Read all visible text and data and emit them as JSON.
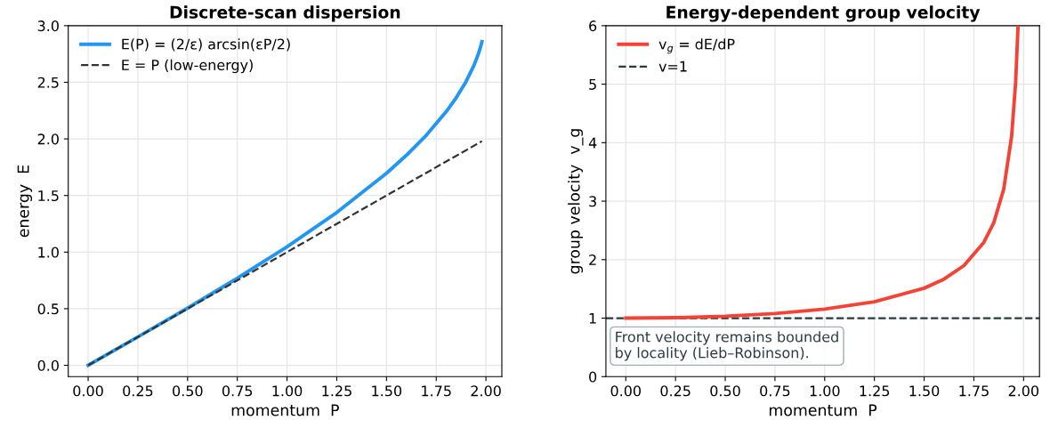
{
  "chart_data": [
    {
      "type": "line",
      "title": "Discrete-scan dispersion",
      "xlabel": "momentum  P",
      "ylabel": "energy  E",
      "xlim": [
        -0.1,
        2.08
      ],
      "ylim": [
        -0.1,
        3.0
      ],
      "xticks": [
        {
          "value": 0,
          "label": "0.00"
        },
        {
          "value": 0.25,
          "label": "0.25"
        },
        {
          "value": 0.5,
          "label": "0.50"
        },
        {
          "value": 0.75,
          "label": "0.75"
        },
        {
          "value": 1,
          "label": "1.00"
        },
        {
          "value": 1.25,
          "label": "1.25"
        },
        {
          "value": 1.5,
          "label": "1.50"
        },
        {
          "value": 1.75,
          "label": "1.75"
        },
        {
          "value": 2,
          "label": "2.00"
        }
      ],
      "yticks": [
        {
          "value": 0,
          "label": "0.0"
        },
        {
          "value": 0.5,
          "label": "0.5"
        },
        {
          "value": 1,
          "label": "1.0"
        },
        {
          "value": 1.5,
          "label": "1.5"
        },
        {
          "value": 2,
          "label": "2.0"
        },
        {
          "value": 2.5,
          "label": "2.5"
        },
        {
          "value": 3,
          "label": "3.0"
        }
      ],
      "grid": true,
      "legend": "top left",
      "series": [
        {
          "name": "E(P) = (2/ε) arcsin(εP/2)",
          "color": "#2196f3",
          "line_style": "solid",
          "x": [
            0,
            0.25,
            0.5,
            0.75,
            1.0,
            1.25,
            1.5,
            1.6,
            1.7,
            1.8,
            1.85,
            1.9,
            1.94,
            1.96,
            1.972,
            1.98
          ],
          "values": [
            0,
            0.251,
            0.505,
            0.769,
            1.047,
            1.35,
            1.696,
            1.855,
            2.032,
            2.24,
            2.362,
            2.506,
            2.65,
            2.741,
            2.807,
            2.859
          ]
        },
        {
          "name": "E = P (low-energy)",
          "color": "#333333",
          "line_style": "dashed",
          "x": [
            0,
            1.98
          ],
          "values": [
            0,
            1.98
          ]
        }
      ]
    },
    {
      "type": "line",
      "title": "Energy-dependent group velocity",
      "xlabel": "momentum  P",
      "ylabel": "group velocity  v_g",
      "xlim": [
        -0.1,
        2.08
      ],
      "ylim": [
        0,
        6
      ],
      "xticks": [
        {
          "value": 0,
          "label": "0.00"
        },
        {
          "value": 0.25,
          "label": "0.25"
        },
        {
          "value": 0.5,
          "label": "0.50"
        },
        {
          "value": 0.75,
          "label": "0.75"
        },
        {
          "value": 1,
          "label": "1.00"
        },
        {
          "value": 1.25,
          "label": "1.25"
        },
        {
          "value": 1.5,
          "label": "1.50"
        },
        {
          "value": 1.75,
          "label": "1.75"
        },
        {
          "value": 2,
          "label": "2.00"
        }
      ],
      "yticks": [
        0,
        1,
        2,
        3,
        4,
        5,
        6
      ],
      "grid": true,
      "legend": "top left",
      "series": [
        {
          "name": "v$_{g}$ = dE/dP",
          "color": "#f44336",
          "line_style": "solid",
          "x": [
            0,
            0.25,
            0.5,
            0.75,
            1.0,
            1.25,
            1.5,
            1.6,
            1.7,
            1.8,
            1.85,
            1.9,
            1.94,
            1.96,
            1.972
          ],
          "values": [
            1,
            1.008,
            1.033,
            1.079,
            1.155,
            1.281,
            1.512,
            1.667,
            1.898,
            2.294,
            2.63,
            3.203,
            4.113,
            5.03,
            5.98
          ]
        }
      ],
      "ref_lines": [
        {
          "axis": "y",
          "value": 1,
          "label": "v=1",
          "color": "#2b3a42",
          "line_style": "dashed"
        }
      ],
      "annotations": [
        "Front velocity remains bounded\nby locality (Lieb–Robinson)."
      ]
    }
  ]
}
